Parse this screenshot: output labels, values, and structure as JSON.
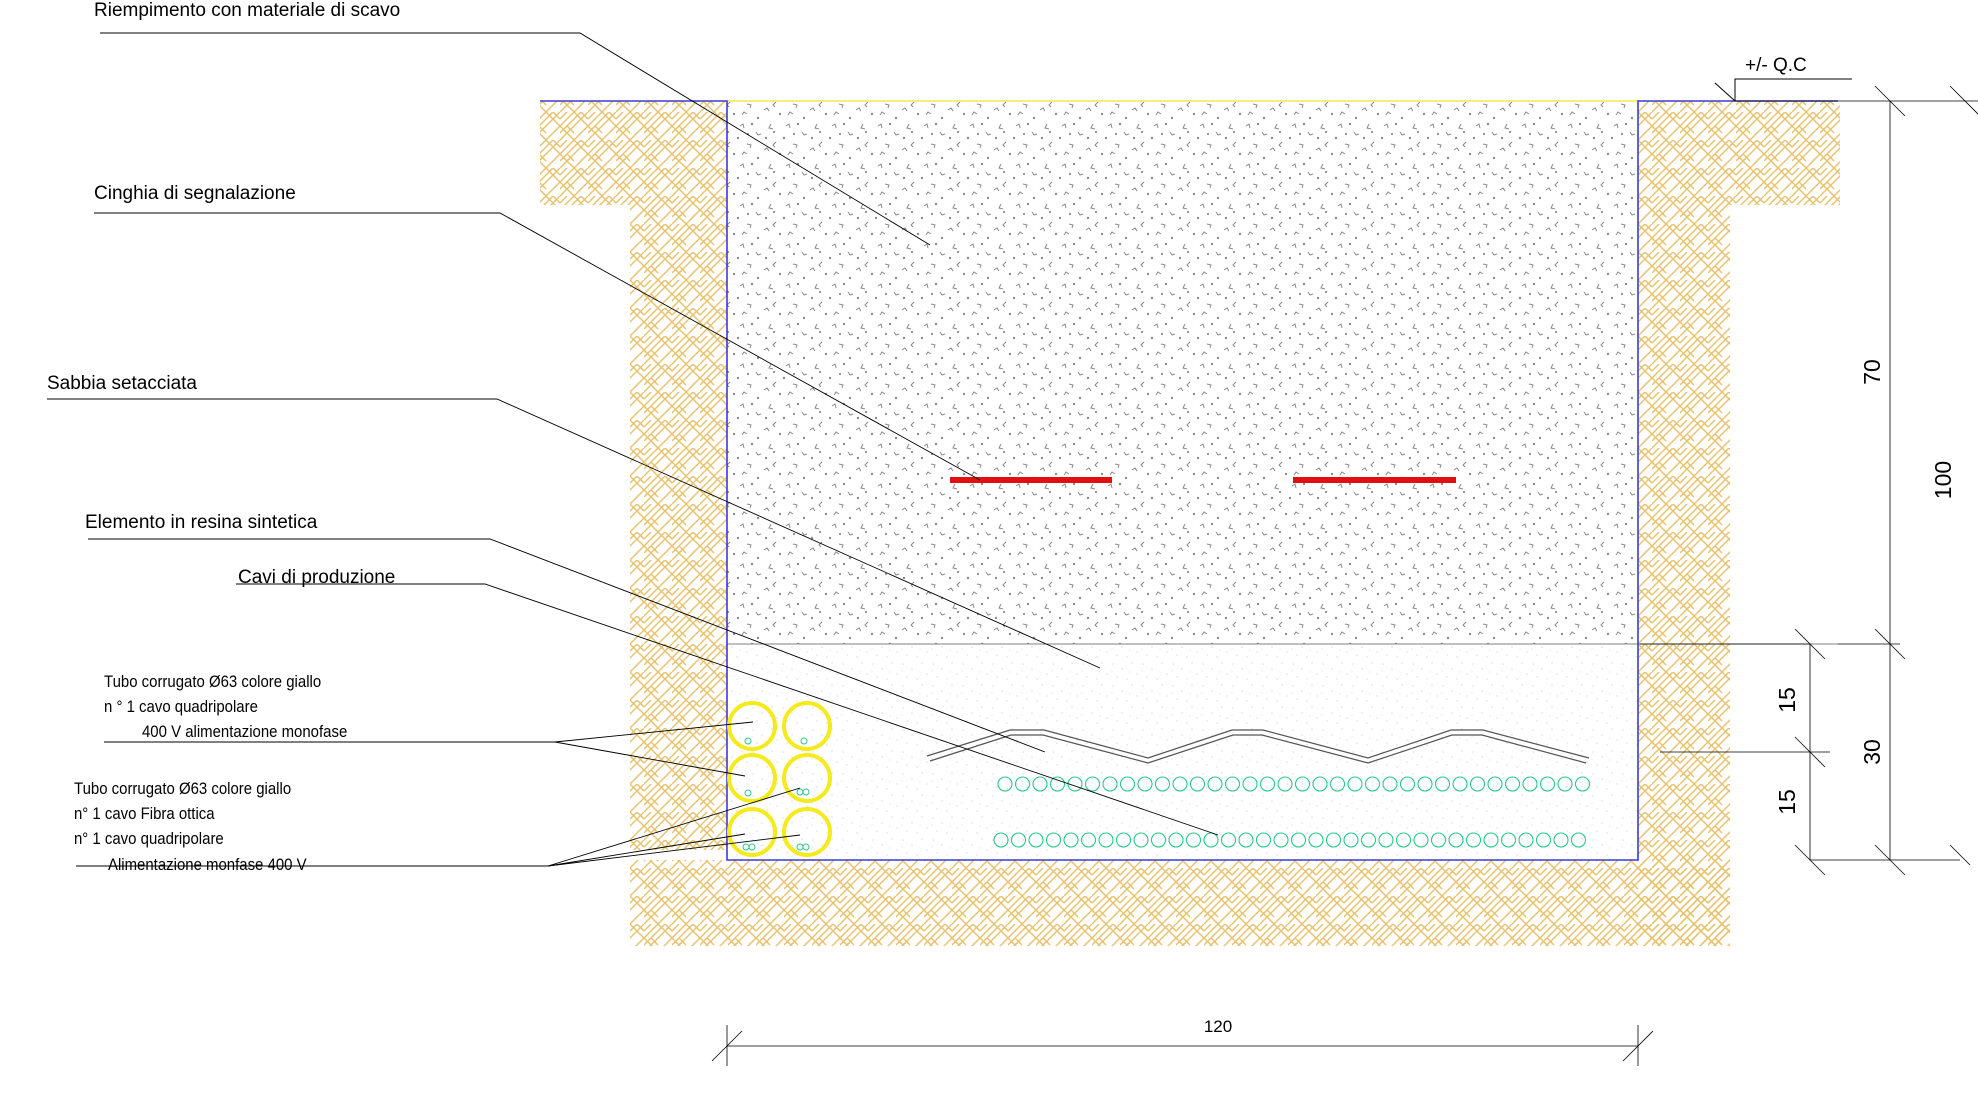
{
  "labels": {
    "fill": "Riempimento con materiale di scavo",
    "tape": "Cinghia di segnalazione",
    "sand": "Sabbia setacciata",
    "resin": "Elemento in resina sintetica",
    "cables": "Cavi di produzione",
    "tube1_line1": "Tubo corrugato Ø63 colore giallo",
    "tube1_line2": "n ° 1 cavo quadripolare",
    "tube1_line3": "400 V alimentazione monofase",
    "tube2_line1": "Tubo corrugato Ø63 colore giallo",
    "tube2_line2": "n° 1 cavo Fibra ottica",
    "tube2_line3": "n° 1 cavo quadripolare",
    "tube2_line4": "Alimentazione monfase 400 V",
    "level": "+/- Q.C"
  },
  "dimensions": {
    "width": "120",
    "total_depth": "100",
    "fill_depth": "70",
    "sand_depth": "30",
    "sand_upper": "15",
    "sand_lower": "15"
  },
  "colors": {
    "soil_hatch": "#e8c26a",
    "trench_edge": "#3b3bd6",
    "grade_line": "#f2ea4a",
    "warning_tape": "#e01010",
    "tube": "#f4ea1c",
    "cable": "#28c88a",
    "fill_speckle": "#8a8a8a",
    "sand_speckle": "#c8c8c8"
  }
}
